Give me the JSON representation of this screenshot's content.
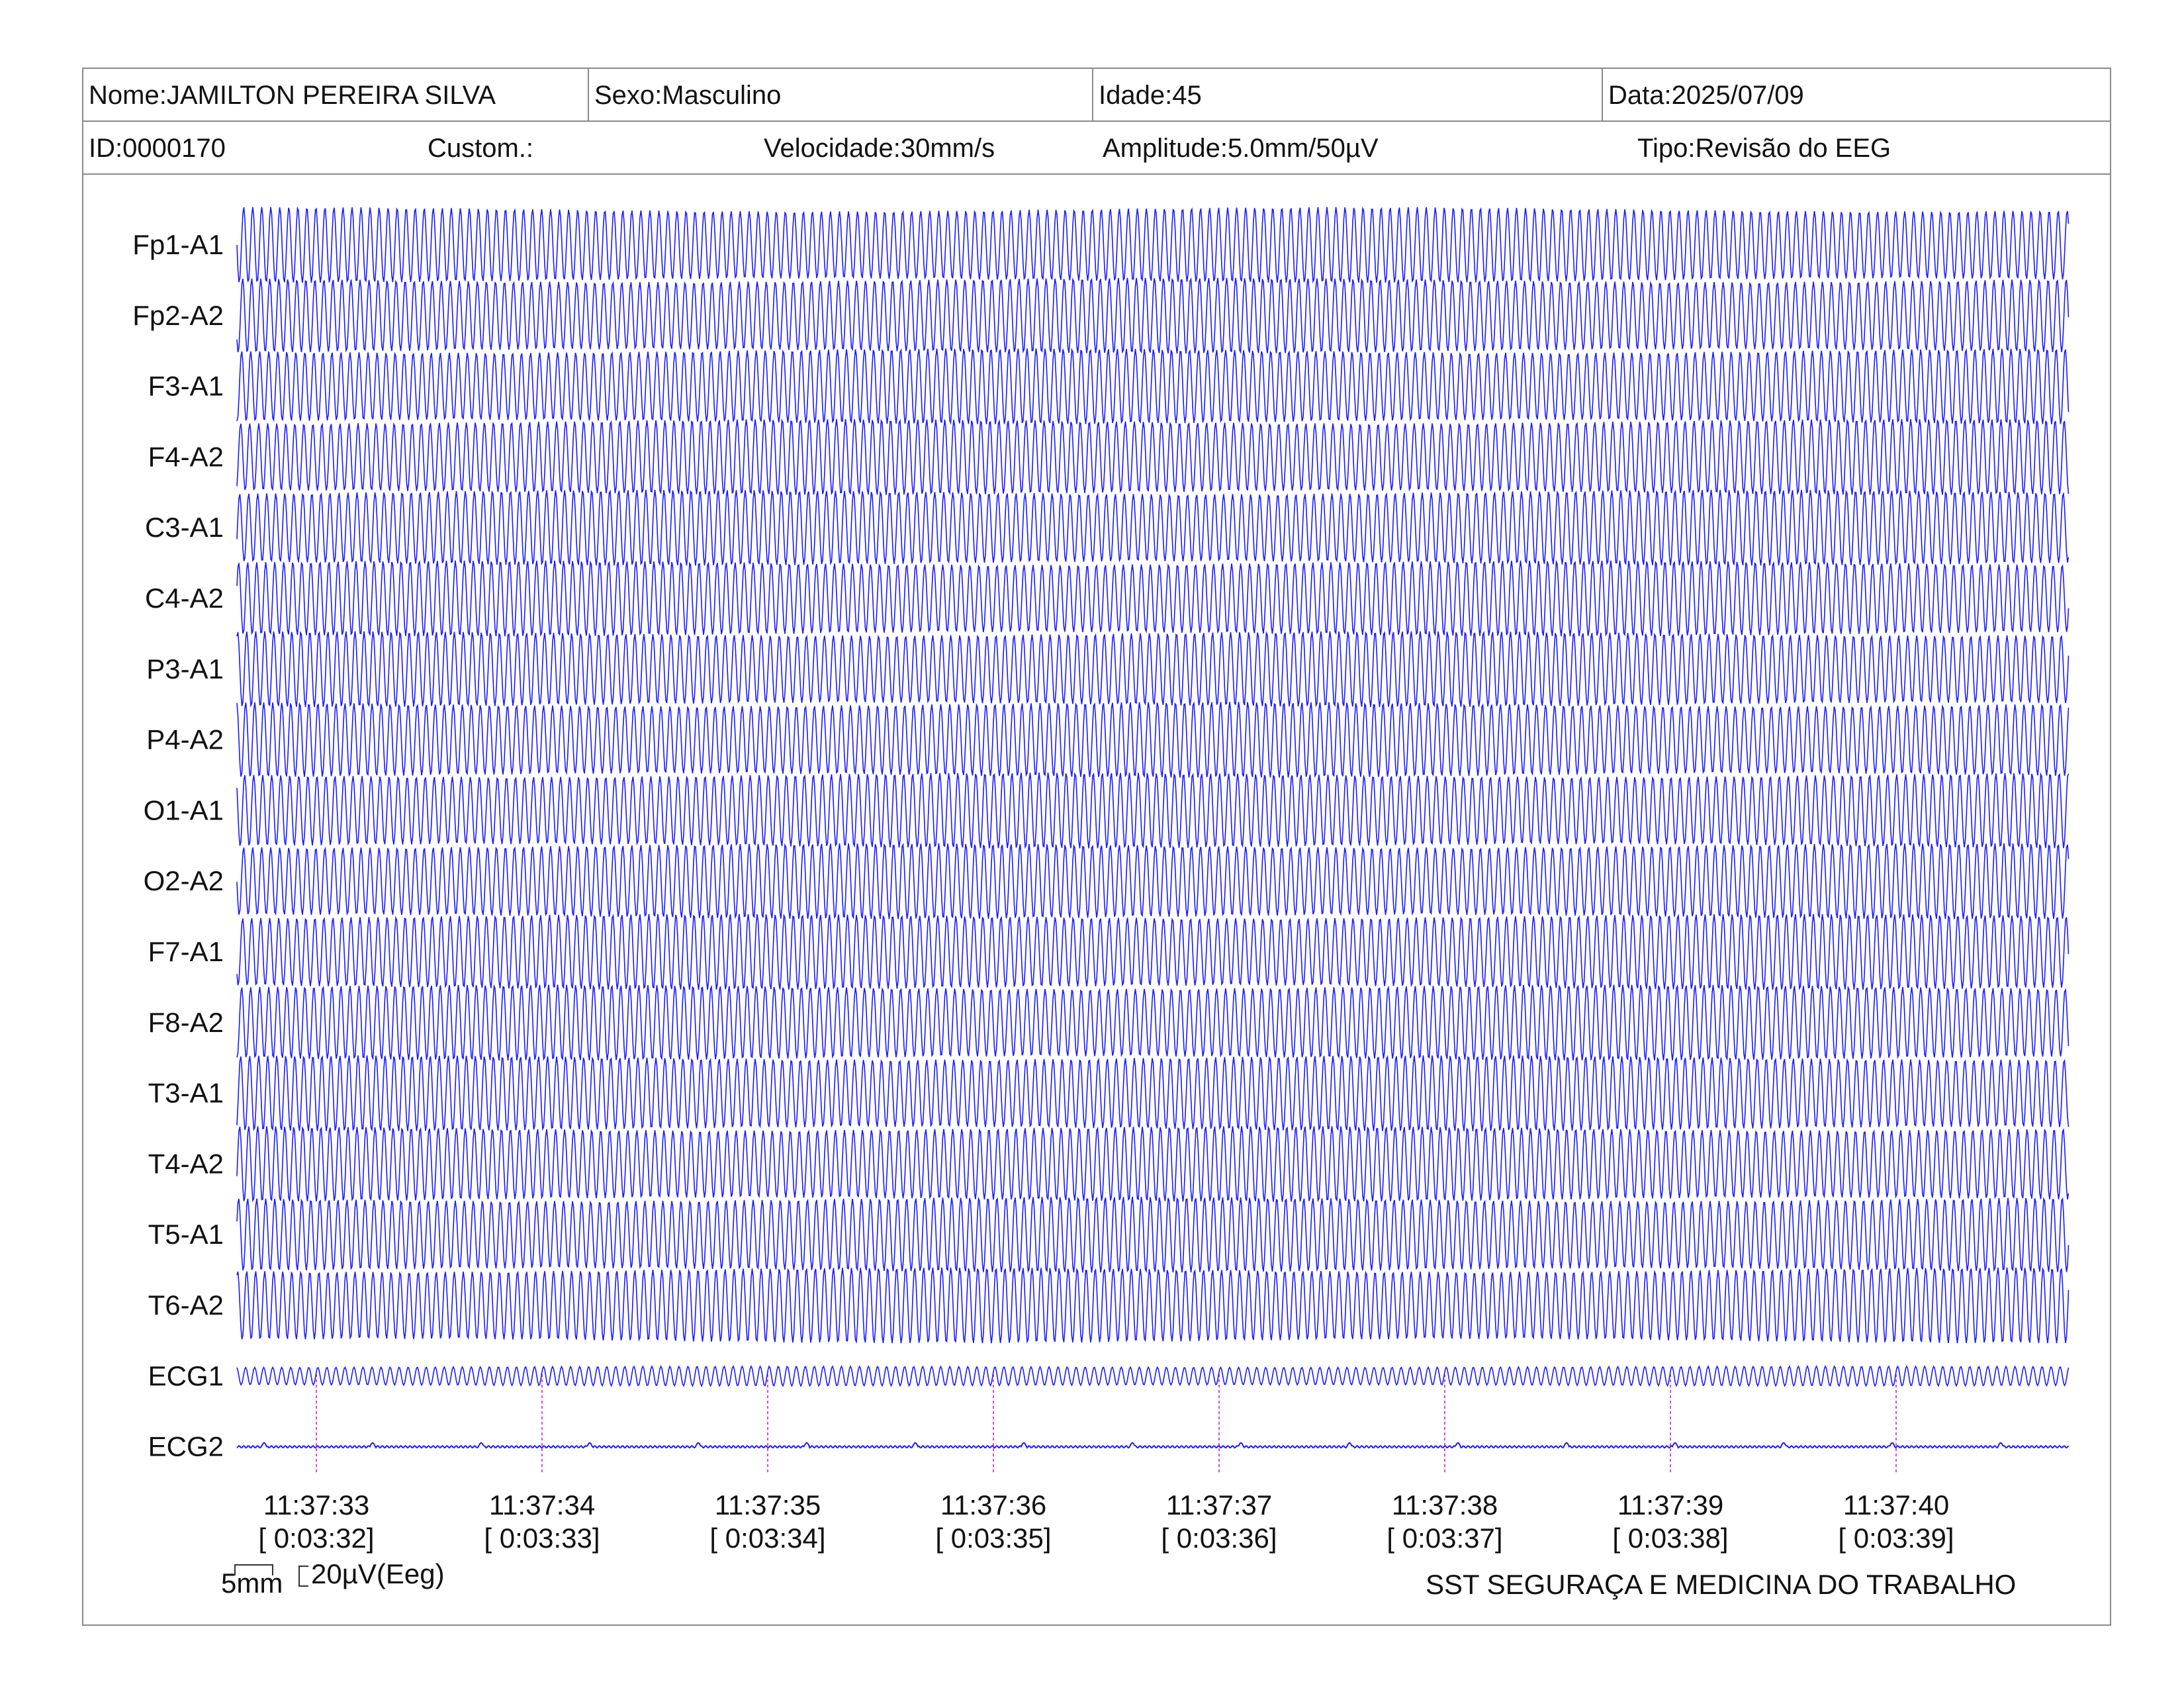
{
  "header": {
    "nome": "Nome:JAMILTON PEREIRA SILVA",
    "sexo": "Sexo:Masculino",
    "idade": "Idade:45",
    "data": "Data:2025/07/09",
    "id": "ID:0000170",
    "custom": "Custom.:",
    "velocidade": "Velocidade:30mm/s",
    "amplitude": "Amplitude:5.0mm/50µV",
    "tipo": "Tipo:Revisão do EEG"
  },
  "chart_data": {
    "type": "line",
    "title": "",
    "trace_color": "#1a1aff",
    "marker_color": "#e040e0",
    "channels": [
      "Fp1-A1",
      "Fp2-A2",
      "F3-A1",
      "F4-A2",
      "C3-A1",
      "C4-A2",
      "P3-A1",
      "P4-A2",
      "O1-A1",
      "O2-A2",
      "F7-A1",
      "F8-A2",
      "T3-A1",
      "T4-A2",
      "T5-A1",
      "T6-A2",
      "ECG1",
      "ECG2"
    ],
    "time_ticks": [
      {
        "time": "11:37:33",
        "elapsed": "[ 0:03:32]"
      },
      {
        "time": "11:37:34",
        "elapsed": "[ 0:03:33]"
      },
      {
        "time": "11:37:35",
        "elapsed": "[ 0:03:34]"
      },
      {
        "time": "11:37:36",
        "elapsed": "[ 0:03:35]"
      },
      {
        "time": "11:37:37",
        "elapsed": "[ 0:03:36]"
      },
      {
        "time": "11:37:38",
        "elapsed": "[ 0:03:37]"
      },
      {
        "time": "11:37:39",
        "elapsed": "[ 0:03:38]"
      },
      {
        "time": "11:37:40",
        "elapsed": "[ 0:03:39]"
      }
    ],
    "speed_mm_per_s": 30,
    "eeg_oscillation_hz": 25,
    "ecg1_oscillation_hz": 25
  },
  "footer": {
    "scale_time": "5mm",
    "scale_amp": "20µV(Eeg)",
    "company": "SST SEGURAÇA E MEDICINA DO TRABALHO"
  }
}
